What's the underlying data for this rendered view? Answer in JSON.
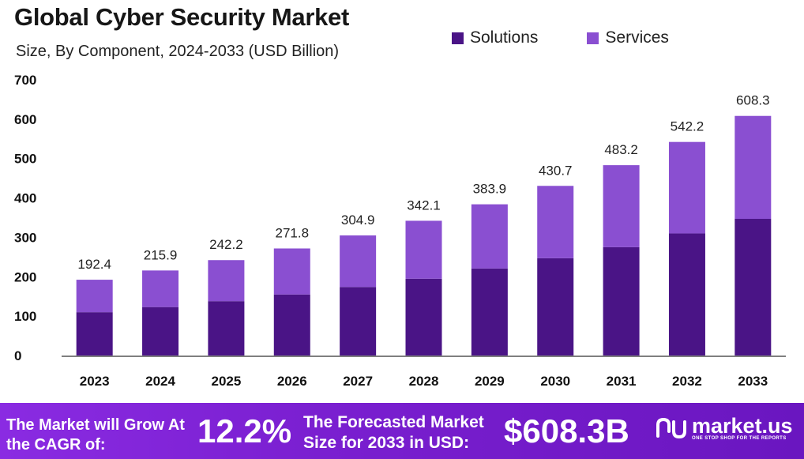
{
  "header": {
    "title": "Global Cyber Security Market",
    "subtitle": "Size, By Component, 2024-2033 (USD Billion)"
  },
  "colors": {
    "solutions": "#4a1486",
    "services": "#8a4fd1",
    "footer_bg": "#7a1fd0"
  },
  "chart_data": {
    "type": "bar",
    "stacked": true,
    "categories": [
      "2023",
      "2024",
      "2025",
      "2026",
      "2027",
      "2028",
      "2029",
      "2030",
      "2031",
      "2032",
      "2033"
    ],
    "series": [
      {
        "name": "Solutions",
        "values": [
          110,
          123,
          138,
          155,
          174,
          195,
          221,
          247,
          275,
          310,
          347
        ]
      },
      {
        "name": "Services",
        "values": [
          82.4,
          92.9,
          104.2,
          116.8,
          130.9,
          147.1,
          162.9,
          183.7,
          208.2,
          232.2,
          261.3
        ]
      }
    ],
    "totals": [
      "192.4",
      "215.9",
      "242.2",
      "271.8",
      "304.9",
      "342.1",
      "383.9",
      "430.7",
      "483.2",
      "542.2",
      "608.3"
    ],
    "ylim": [
      0,
      700
    ],
    "yticks": [
      "0",
      "100",
      "200",
      "300",
      "400",
      "500",
      "600",
      "700"
    ],
    "title": "Global Cyber Security Market",
    "xlabel": "",
    "ylabel": "",
    "grid": false,
    "legend": "top-right"
  },
  "legend": {
    "solutions": "Solutions",
    "services": "Services"
  },
  "footer": {
    "cagr_label": "The Market will Grow At the CAGR of:",
    "cagr_value": "12.2%",
    "forecast_label": "The Forecasted Market Size for 2033 in USD:",
    "forecast_value": "$608.3B",
    "logo_name": "market.us",
    "logo_tagline": "ONE STOP SHOP FOR THE REPORTS"
  }
}
